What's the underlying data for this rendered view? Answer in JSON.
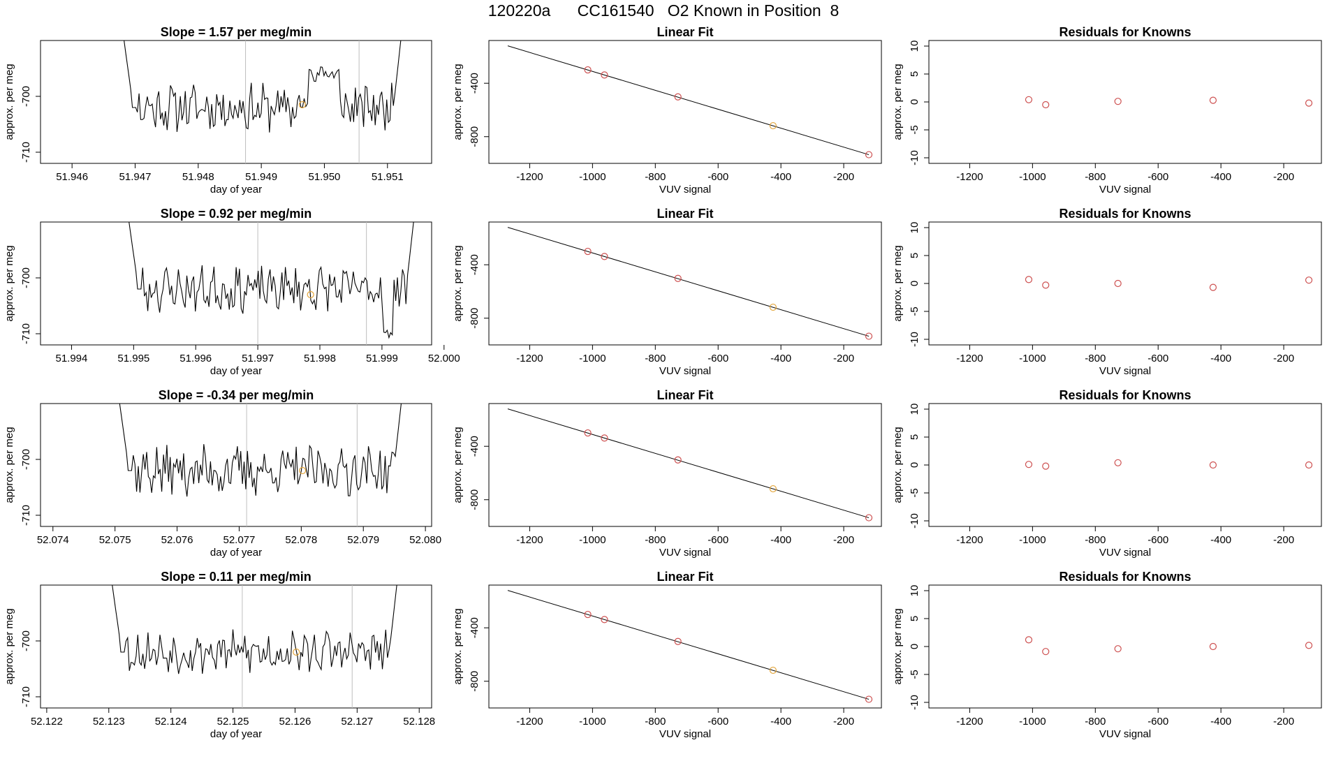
{
  "page_title": "120220a      CC161540   O2 Known in Position  8",
  "chart_data": [
    {
      "type": "line",
      "panel": "time",
      "title": "Slope =  1.57  per meg/min",
      "xlabel": "day of year",
      "ylabel": "approx. per meg",
      "xlim": [
        51.9455,
        51.9517
      ],
      "ylim": [
        -712,
        -690
      ],
      "xticks": [
        51.946,
        51.947,
        51.948,
        51.949,
        51.95,
        51.951
      ],
      "xtick_labels": [
        "51.946",
        "51.947",
        "51.948",
        "51.949",
        "51.950",
        "51.951"
      ],
      "yticks": [
        -700,
        -710
      ],
      "ytick_labels": [
        "-700",
        "-710"
      ],
      "vlines": [
        51.94875,
        51.95055
      ],
      "line_start": 51.9468,
      "line_end": 51.95125,
      "seed": 11,
      "wiggle": 3.5,
      "start_level": -690,
      "end_level": -690,
      "bump": [
        51.95,
        -696
      ],
      "highlight_point": {
        "x": 51.94965,
        "y": -701.5
      }
    },
    {
      "type": "scatter_fit",
      "panel": "fit",
      "title": "Linear Fit",
      "xlabel": "VUV signal",
      "ylabel": "approx. per meg",
      "xlim": [
        -1330,
        -80
      ],
      "ylim": [
        -1000,
        -80
      ],
      "xticks": [
        -1200,
        -1000,
        -800,
        -600,
        -400,
        -200
      ],
      "xtick_labels": [
        "-1200",
        "-1000",
        "-800",
        "-600",
        "-400",
        "-200"
      ],
      "yticks": [
        -400,
        -800
      ],
      "ytick_labels": [
        "-400",
        "-800"
      ],
      "fit_line": {
        "x0": -1270,
        "y0": -120,
        "x1": -120,
        "y1": -935
      },
      "points": [
        {
          "x": -1015,
          "y": -300,
          "color": "#cd4f4f"
        },
        {
          "x": -962,
          "y": -338,
          "color": "#cd4f4f"
        },
        {
          "x": -728,
          "y": -502,
          "color": "#cd4f4f"
        },
        {
          "x": -425,
          "y": -718,
          "color": "#e3a53a"
        },
        {
          "x": -120,
          "y": -935,
          "color": "#cd4f4f"
        }
      ]
    },
    {
      "type": "scatter",
      "panel": "resid",
      "title": "Residuals for Knowns",
      "xlabel": "VUV signal",
      "ylabel": "approx. per meg",
      "xlim": [
        -1330,
        -80
      ],
      "ylim": [
        -11,
        11
      ],
      "xticks": [
        -1200,
        -1000,
        -800,
        -600,
        -400,
        -200
      ],
      "xtick_labels": [
        "-1200",
        "-1000",
        "-800",
        "-600",
        "-400",
        "-200"
      ],
      "yticks": [
        10,
        5,
        0,
        -5,
        -10
      ],
      "ytick_labels": [
        "10",
        "5",
        "0",
        "-5",
        "-10"
      ],
      "points": [
        {
          "x": -1012,
          "y": 0.4
        },
        {
          "x": -958,
          "y": -0.5
        },
        {
          "x": -728,
          "y": 0.1
        },
        {
          "x": -425,
          "y": 0.3
        },
        {
          "x": -120,
          "y": -0.2
        }
      ]
    },
    {
      "type": "line",
      "panel": "time",
      "title": "Slope =  0.92  per meg/min",
      "xlabel": "day of year",
      "ylabel": "approx. per meg",
      "xlim": [
        51.9935,
        51.9998
      ],
      "ylim": [
        -712,
        -690
      ],
      "xticks": [
        51.994,
        51.995,
        51.996,
        51.997,
        51.998,
        51.999,
        52.0
      ],
      "xtick_labels": [
        "51.994",
        "51.995",
        "51.996",
        "51.997",
        "51.998",
        "51.999",
        "52.000"
      ],
      "yticks": [
        -700,
        -710
      ],
      "ytick_labels": [
        "-700",
        "-710"
      ],
      "vlines": [
        51.997,
        51.99875
      ],
      "line_start": 51.9949,
      "line_end": 51.99955,
      "seed": 23,
      "wiggle": 3.3,
      "start_level": -690,
      "end_level": -690,
      "dip": [
        51.9991,
        -710
      ],
      "highlight_point": {
        "x": 51.99785,
        "y": -703
      }
    },
    {
      "type": "scatter_fit",
      "panel": "fit",
      "title": "Linear Fit",
      "xlabel": "VUV signal",
      "ylabel": "approx. per meg",
      "xlim": [
        -1330,
        -80
      ],
      "ylim": [
        -1000,
        -80
      ],
      "xticks": [
        -1200,
        -1000,
        -800,
        -600,
        -400,
        -200
      ],
      "xtick_labels": [
        "-1200",
        "-1000",
        "-800",
        "-600",
        "-400",
        "-200"
      ],
      "yticks": [
        -400,
        -800
      ],
      "ytick_labels": [
        "-400",
        "-800"
      ],
      "fit_line": {
        "x0": -1270,
        "y0": -120,
        "x1": -120,
        "y1": -935
      },
      "points": [
        {
          "x": -1015,
          "y": -300,
          "color": "#cd4f4f"
        },
        {
          "x": -962,
          "y": -338,
          "color": "#cd4f4f"
        },
        {
          "x": -728,
          "y": -502,
          "color": "#cd4f4f"
        },
        {
          "x": -425,
          "y": -718,
          "color": "#e3a53a"
        },
        {
          "x": -120,
          "y": -935,
          "color": "#cd4f4f"
        }
      ]
    },
    {
      "type": "scatter",
      "panel": "resid",
      "title": "Residuals for Knowns",
      "xlabel": "VUV signal",
      "ylabel": "approx. per meg",
      "xlim": [
        -1330,
        -80
      ],
      "ylim": [
        -11,
        11
      ],
      "xticks": [
        -1200,
        -1000,
        -800,
        -600,
        -400,
        -200
      ],
      "xtick_labels": [
        "-1200",
        "-1000",
        "-800",
        "-600",
        "-400",
        "-200"
      ],
      "yticks": [
        10,
        5,
        0,
        -5,
        -10
      ],
      "ytick_labels": [
        "10",
        "5",
        "0",
        "-5",
        "-10"
      ],
      "points": [
        {
          "x": -1012,
          "y": 0.7
        },
        {
          "x": -958,
          "y": -0.3
        },
        {
          "x": -728,
          "y": 0.0
        },
        {
          "x": -425,
          "y": -0.7
        },
        {
          "x": -120,
          "y": 0.6
        }
      ]
    },
    {
      "type": "line",
      "panel": "time",
      "title": "Slope =  -0.34  per meg/min",
      "xlabel": "day of year",
      "ylabel": "approx. per meg",
      "xlim": [
        52.0738,
        52.0801
      ],
      "ylim": [
        -712,
        -690
      ],
      "xticks": [
        52.074,
        52.075,
        52.076,
        52.077,
        52.078,
        52.079,
        52.08
      ],
      "xtick_labels": [
        "52.074",
        "52.075",
        "52.076",
        "52.077",
        "52.078",
        "52.079",
        "52.080"
      ],
      "yticks": [
        -700,
        -710
      ],
      "ytick_labels": [
        "-700",
        "-710"
      ],
      "vlines": [
        52.07712,
        52.0789
      ],
      "line_start": 52.07505,
      "line_end": 52.07965,
      "seed": 37,
      "wiggle": 3.8,
      "start_level": -690,
      "end_level": -690,
      "highlight_point": {
        "x": 52.07802,
        "y": -702
      }
    },
    {
      "type": "scatter_fit",
      "panel": "fit",
      "title": "Linear Fit",
      "xlabel": "VUV signal",
      "ylabel": "approx. per meg",
      "xlim": [
        -1330,
        -80
      ],
      "ylim": [
        -1000,
        -80
      ],
      "xticks": [
        -1200,
        -1000,
        -800,
        -600,
        -400,
        -200
      ],
      "xtick_labels": [
        "-1200",
        "-1000",
        "-800",
        "-600",
        "-400",
        "-200"
      ],
      "yticks": [
        -400,
        -800
      ],
      "ytick_labels": [
        "-400",
        "-800"
      ],
      "fit_line": {
        "x0": -1270,
        "y0": -120,
        "x1": -120,
        "y1": -935
      },
      "points": [
        {
          "x": -1015,
          "y": -300,
          "color": "#cd4f4f"
        },
        {
          "x": -962,
          "y": -338,
          "color": "#cd4f4f"
        },
        {
          "x": -728,
          "y": -502,
          "color": "#cd4f4f"
        },
        {
          "x": -425,
          "y": -718,
          "color": "#e3a53a"
        },
        {
          "x": -120,
          "y": -935,
          "color": "#cd4f4f"
        }
      ]
    },
    {
      "type": "scatter",
      "panel": "resid",
      "title": "Residuals for Knowns",
      "xlabel": "VUV signal",
      "ylabel": "approx. per meg",
      "xlim": [
        -1330,
        -80
      ],
      "ylim": [
        -11,
        11
      ],
      "xticks": [
        -1200,
        -1000,
        -800,
        -600,
        -400,
        -200
      ],
      "xtick_labels": [
        "-1200",
        "-1000",
        "-800",
        "-600",
        "-400",
        "-200"
      ],
      "yticks": [
        10,
        5,
        0,
        -5,
        -10
      ],
      "ytick_labels": [
        "10",
        "5",
        "0",
        "-5",
        "-10"
      ],
      "points": [
        {
          "x": -1012,
          "y": 0.1
        },
        {
          "x": -958,
          "y": -0.2
        },
        {
          "x": -728,
          "y": 0.4
        },
        {
          "x": -425,
          "y": 0.0
        },
        {
          "x": -120,
          "y": 0.0
        }
      ]
    },
    {
      "type": "line",
      "panel": "time",
      "title": "Slope =  0.11  per meg/min",
      "xlabel": "day of year",
      "ylabel": "approx. per meg",
      "xlim": [
        52.1219,
        52.1282
      ],
      "ylim": [
        -712,
        -690
      ],
      "xticks": [
        52.122,
        52.123,
        52.124,
        52.125,
        52.126,
        52.127,
        52.128
      ],
      "xtick_labels": [
        "52.122",
        "52.123",
        "52.124",
        "52.125",
        "52.126",
        "52.127",
        "52.128"
      ],
      "yticks": [
        -700,
        -710
      ],
      "ytick_labels": [
        "-700",
        "-710"
      ],
      "vlines": [
        52.12515,
        52.12692
      ],
      "line_start": 52.12303,
      "line_end": 52.12768,
      "seed": 53,
      "wiggle": 3.0,
      "start_level": -690,
      "end_level": -690,
      "highlight_point": {
        "x": 52.12602,
        "y": -702
      }
    },
    {
      "type": "scatter_fit",
      "panel": "fit",
      "title": "Linear Fit",
      "xlabel": "VUV signal",
      "ylabel": "approx. per meg",
      "xlim": [
        -1330,
        -80
      ],
      "ylim": [
        -1000,
        -80
      ],
      "xticks": [
        -1200,
        -1000,
        -800,
        -600,
        -400,
        -200
      ],
      "xtick_labels": [
        "-1200",
        "-1000",
        "-800",
        "-600",
        "-400",
        "-200"
      ],
      "yticks": [
        -400,
        -800
      ],
      "ytick_labels": [
        "-400",
        "-800"
      ],
      "fit_line": {
        "x0": -1270,
        "y0": -120,
        "x1": -120,
        "y1": -935
      },
      "points": [
        {
          "x": -1015,
          "y": -300,
          "color": "#cd4f4f"
        },
        {
          "x": -962,
          "y": -338,
          "color": "#cd4f4f"
        },
        {
          "x": -728,
          "y": -502,
          "color": "#cd4f4f"
        },
        {
          "x": -425,
          "y": -718,
          "color": "#e3a53a"
        },
        {
          "x": -120,
          "y": -935,
          "color": "#cd4f4f"
        }
      ]
    },
    {
      "type": "scatter",
      "panel": "resid",
      "title": "Residuals for Knowns",
      "xlabel": "VUV signal",
      "ylabel": "approx. per meg",
      "xlim": [
        -1330,
        -80
      ],
      "ylim": [
        -11,
        11
      ],
      "xticks": [
        -1200,
        -1000,
        -800,
        -600,
        -400,
        -200
      ],
      "xtick_labels": [
        "-1200",
        "-1000",
        "-800",
        "-600",
        "-400",
        "-200"
      ],
      "yticks": [
        10,
        5,
        0,
        -5,
        -10
      ],
      "ytick_labels": [
        "10",
        "5",
        "0",
        "-5",
        "-10"
      ],
      "points": [
        {
          "x": -1012,
          "y": 1.2
        },
        {
          "x": -958,
          "y": -0.9
        },
        {
          "x": -728,
          "y": -0.4
        },
        {
          "x": -425,
          "y": 0.0
        },
        {
          "x": -120,
          "y": 0.2
        }
      ]
    }
  ],
  "colors": {
    "axis": "#000000",
    "line": "#000000",
    "vline": "#bebebe",
    "point": "#cd4f4f",
    "highlight": "#e3a53a"
  }
}
